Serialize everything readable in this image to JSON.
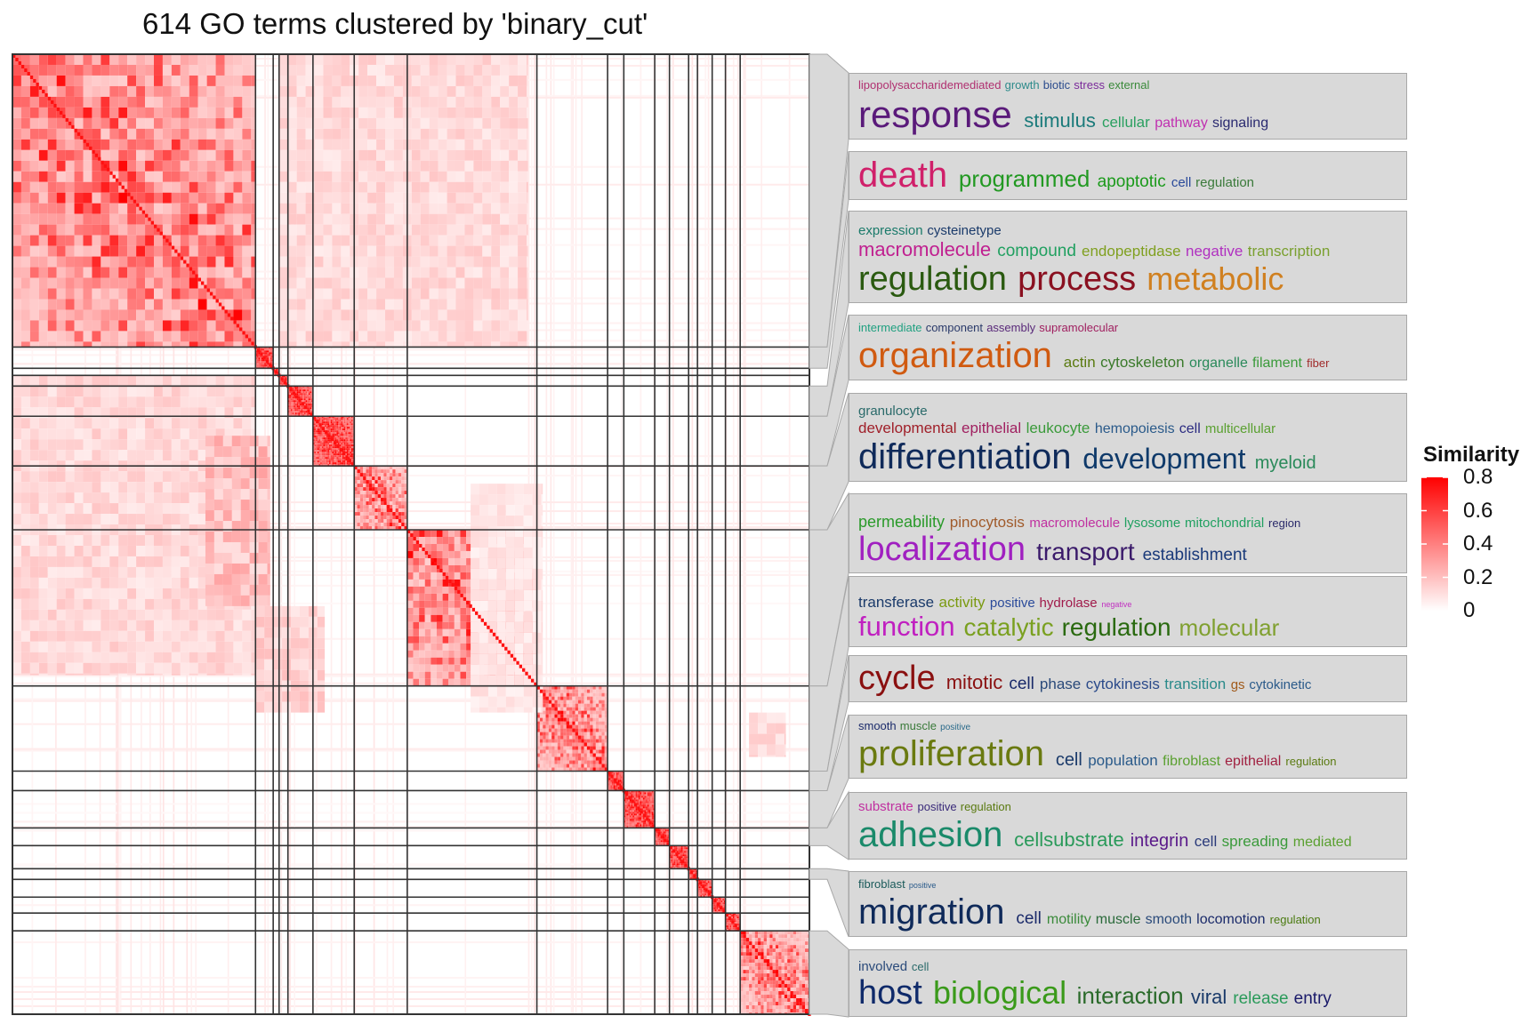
{
  "title": "614 GO terms clustered by 'binary_cut'",
  "chart_data": {
    "type": "heatmap",
    "n_terms": 614,
    "method": "binary_cut",
    "cluster_sizes": [
      165,
      12,
      4,
      6,
      17,
      28,
      36,
      88,
      48,
      11,
      21,
      10,
      13,
      6,
      10,
      9,
      10,
      47
    ],
    "legend": {
      "title": "Similarity",
      "range": [
        0,
        0.8
      ],
      "ticks": [
        {
          "value": 0.8,
          "label": "0.8"
        },
        {
          "value": 0.6,
          "label": "0.6"
        },
        {
          "value": 0.4,
          "label": "0.4"
        },
        {
          "value": 0.2,
          "label": "0.2"
        },
        {
          "value": 0,
          "label": "0"
        }
      ],
      "color_low": "#ffffff",
      "color_high": "#ff0000"
    },
    "wordcloud_box_clusters": [
      0,
      1,
      4,
      5,
      6,
      7,
      8,
      9,
      10,
      11,
      13,
      17
    ],
    "wordclouds": [
      {
        "lines": [
          [
            [
              "lipopolysaccharidemediated",
              13,
              "#b03070"
            ],
            [
              "growth",
              13,
              "#2e8b8b"
            ],
            [
              "biotic",
              13,
              "#2a4b8d"
            ],
            [
              "stress",
              13,
              "#7a2a9a"
            ],
            [
              "external",
              13,
              "#3a8a3a"
            ]
          ],
          [
            [
              "response",
              42,
              "#5a1a7a"
            ],
            [
              "stimulus",
              22,
              "#1a7a7a"
            ],
            [
              "cellular",
              17,
              "#2aa060"
            ],
            [
              "pathway",
              16,
              "#c030b0"
            ],
            [
              "signaling",
              16,
              "#2a2a70"
            ]
          ]
        ]
      },
      {
        "lines": [
          [
            [
              "death",
              40,
              "#d0206a"
            ],
            [
              "programmed",
              26,
              "#229922"
            ],
            [
              "apoptotic",
              19,
              "#1a9a1a"
            ],
            [
              "cell",
              15,
              "#2a4a9a"
            ],
            [
              "regulation",
              15,
              "#3a7a3a"
            ]
          ]
        ]
      },
      {
        "lines": [
          [
            [
              "expression",
              15,
              "#1a7a6a"
            ],
            [
              "cysteinetype",
              15,
              "#1a3a6a"
            ]
          ],
          [
            [
              "macromolecule",
              22,
              "#c02090"
            ],
            [
              "compound",
              19,
              "#20a060"
            ],
            [
              "endopeptidase",
              17,
              "#80a020"
            ],
            [
              "negative",
              17,
              "#b030c0"
            ],
            [
              "transcription",
              17,
              "#7aa030"
            ]
          ],
          [
            [
              "regulation",
              38,
              "#2a5a10"
            ],
            [
              "process",
              38,
              "#8a1020"
            ],
            [
              "metabolic",
              36,
              "#d08020"
            ]
          ]
        ]
      },
      {
        "lines": [
          [
            [
              "intermediate",
              13,
              "#20a080"
            ],
            [
              "component",
              13,
              "#2a3a6a"
            ],
            [
              "assembly",
              13,
              "#5a2a7a"
            ],
            [
              "supramolecular",
              13,
              "#a02060"
            ]
          ],
          [
            [
              "organization",
              40,
              "#d05a10"
            ],
            [
              "actin",
              17,
              "#5a7a10"
            ],
            [
              "cytoskeleton",
              17,
              "#3a7a2a"
            ],
            [
              "organelle",
              16,
              "#2a8a5a"
            ],
            [
              "filament",
              16,
              "#3a9a3a"
            ],
            [
              "fiber",
              13,
              "#a02a2a"
            ]
          ]
        ]
      },
      {
        "lines": [
          [
            [
              "granulocyte",
              15,
              "#2a6a6a"
            ]
          ],
          [
            [
              "developmental",
              17,
              "#a0202a"
            ],
            [
              "epithelial",
              17,
              "#a02060"
            ],
            [
              "leukocyte",
              17,
              "#3a9a3a"
            ],
            [
              "hemopoiesis",
              16,
              "#2a5a8a"
            ],
            [
              "cell",
              16,
              "#2a2a80"
            ],
            [
              "multicellular",
              15,
              "#5aa030"
            ]
          ],
          [
            [
              "differentiation",
              40,
              "#0f2a5a"
            ],
            [
              "development",
              32,
              "#0f3a6a"
            ],
            [
              "myeloid",
              20,
              "#2a8a5a"
            ]
          ]
        ]
      },
      {
        "lines": [
          [
            [
              "permeability",
              18,
              "#2a9a2a"
            ],
            [
              "pinocytosis",
              17,
              "#a05a2a"
            ],
            [
              "macromolecule",
              15,
              "#c030a0"
            ],
            [
              "lysosome",
              15,
              "#20a060"
            ],
            [
              "mitochondrial",
              15,
              "#20a060"
            ],
            [
              "region",
              13,
              "#2a2a6a"
            ]
          ],
          [
            [
              "localization",
              38,
              "#a020c0"
            ],
            [
              "transport",
              28,
              "#3a1a6a"
            ],
            [
              "establishment",
              19,
              "#1a3a7a"
            ]
          ]
        ]
      },
      {
        "lines": [
          [
            [
              "transferase",
              17,
              "#1a3a6a"
            ],
            [
              "activity",
              17,
              "#7a9a10"
            ],
            [
              "positive",
              15,
              "#2a4a9a"
            ],
            [
              "hydrolase",
              15,
              "#a01a4a"
            ],
            [
              "negative",
              9,
              "#c030c0"
            ]
          ],
          [
            [
              "function",
              31,
              "#c020c0"
            ],
            [
              "catalytic",
              28,
              "#7aa020"
            ],
            [
              "regulation",
              28,
              "#2a6a10"
            ],
            [
              "molecular",
              26,
              "#80a030"
            ]
          ]
        ]
      },
      {
        "lines": [
          [
            [
              "cycle",
              38,
              "#8a1010"
            ],
            [
              "mitotic",
              22,
              "#8a1010"
            ],
            [
              "cell",
              19,
              "#1a2a6a"
            ],
            [
              "phase",
              17,
              "#2a4a7a"
            ],
            [
              "cytokinesis",
              17,
              "#2a4a8a"
            ],
            [
              "transition",
              17,
              "#2a8a8a"
            ],
            [
              "gs",
              15,
              "#a05a1a"
            ],
            [
              "cytokinetic",
              15,
              "#2a5a8a"
            ]
          ]
        ]
      },
      {
        "lines": [
          [
            [
              "smooth",
              13,
              "#1a2a6a"
            ],
            [
              "muscle",
              13,
              "#3a7a3a"
            ],
            [
              "positive",
              10,
              "#2a6a8a"
            ]
          ],
          [
            [
              "proliferation",
              40,
              "#6a7a10"
            ],
            [
              "cell",
              20,
              "#1a3a6a"
            ],
            [
              "population",
              17,
              "#2a5a8a"
            ],
            [
              "fibroblast",
              16,
              "#5aa030"
            ],
            [
              "epithelial",
              16,
              "#a02040"
            ],
            [
              "regulation",
              13,
              "#5a7a10"
            ]
          ]
        ]
      },
      {
        "lines": [
          [
            [
              "substrate",
              15,
              "#c030a0"
            ],
            [
              "positive",
              13,
              "#3a2a7a"
            ],
            [
              "regulation",
              13,
              "#5a7a10"
            ]
          ],
          [
            [
              "adhesion",
              40,
              "#1a8a6a"
            ],
            [
              "cellsubstrate",
              22,
              "#2a9a5a"
            ],
            [
              "integrin",
              20,
              "#5a1a8a"
            ],
            [
              "cell",
              17,
              "#2a3a7a"
            ],
            [
              "spreading",
              17,
              "#3a9a3a"
            ],
            [
              "mediated",
              16,
              "#5aa030"
            ]
          ]
        ]
      },
      {
        "lines": [
          [
            [
              "fibroblast",
              13,
              "#1a5a5a"
            ],
            [
              "positive",
              9,
              "#2a5a8a"
            ]
          ],
          [
            [
              "migration",
              40,
              "#0f2a5a"
            ],
            [
              "cell",
              19,
              "#1a2a6a"
            ],
            [
              "motility",
              16,
              "#3a8a3a"
            ],
            [
              "muscle",
              16,
              "#2a6a3a"
            ],
            [
              "smooth",
              16,
              "#2a4a7a"
            ],
            [
              "locomotion",
              16,
              "#1a2a6a"
            ],
            [
              "regulation",
              13,
              "#4a7a10"
            ]
          ]
        ]
      },
      {
        "lines": [
          [
            [
              "involved",
              15,
              "#2a4a7a"
            ],
            [
              "cell",
              13,
              "#2a6a6a"
            ]
          ],
          [
            [
              "host",
              38,
              "#0f2a6a"
            ],
            [
              "biological",
              36,
              "#3a9a1a"
            ],
            [
              "interaction",
              26,
              "#2a6a2a"
            ],
            [
              "viral",
              22,
              "#1a3a6a"
            ],
            [
              "release",
              19,
              "#2a9a5a"
            ],
            [
              "entry",
              19,
              "#1a1a6a"
            ]
          ]
        ]
      }
    ]
  }
}
